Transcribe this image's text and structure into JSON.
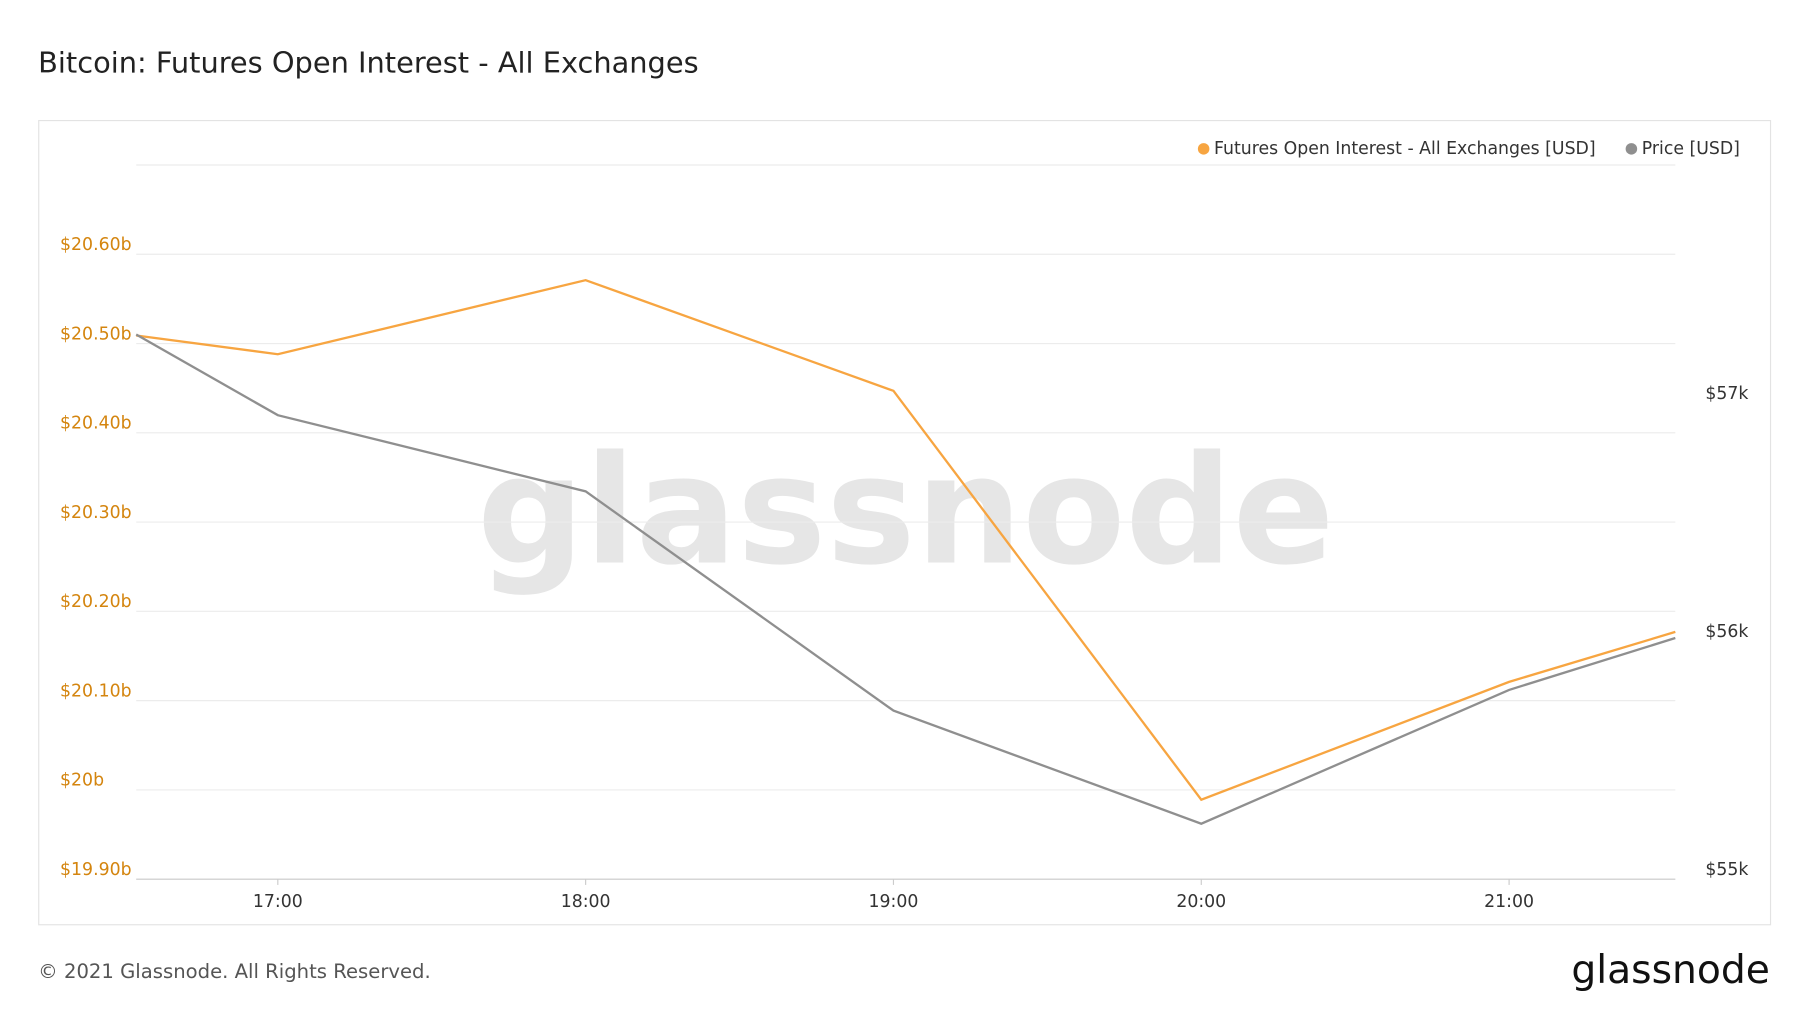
{
  "chart_data": {
    "type": "line",
    "title": "Bitcoin: Futures Open Interest - All Exchanges",
    "x": [
      16.54,
      17,
      18,
      19,
      20,
      21,
      21.54
    ],
    "xlim": [
      16.54,
      21.54
    ],
    "xticks": [
      {
        "value": 17,
        "label": "17:00"
      },
      {
        "value": 18,
        "label": "18:00"
      },
      {
        "value": 19,
        "label": "19:00"
      },
      {
        "value": 20,
        "label": "20:00"
      },
      {
        "value": 21,
        "label": "21:00"
      }
    ],
    "ylim": [
      19.9,
      20.7
    ],
    "yticks": [
      {
        "value": 19.9,
        "label": "$19.90b"
      },
      {
        "value": 20.0,
        "label": "$20b"
      },
      {
        "value": 20.1,
        "label": "$20.10b"
      },
      {
        "value": 20.2,
        "label": "$20.20b"
      },
      {
        "value": 20.3,
        "label": "$20.30b"
      },
      {
        "value": 20.4,
        "label": "$20.40b"
      },
      {
        "value": 20.5,
        "label": "$20.50b"
      },
      {
        "value": 20.6,
        "label": "$20.60b"
      }
    ],
    "y2lim": [
      55000,
      58000
    ],
    "y2ticks": [
      {
        "value": 55000,
        "label": "$55k"
      },
      {
        "value": 56000,
        "label": "$56k"
      },
      {
        "value": 57000,
        "label": "$57k"
      }
    ],
    "grid": true,
    "legend": "top-right",
    "series": [
      {
        "name": "Futures Open Interest - All Exchanges [USD]",
        "color": "#f7a541",
        "values": [
          20.509,
          20.488,
          20.571,
          20.447,
          19.989,
          20.121,
          20.177
        ]
      },
      {
        "name": "Price [USD]",
        "color": "#8f8f8f",
        "axis": "y2",
        "values": [
          57288,
          56949,
          56629,
          55708,
          55233,
          55795,
          56013
        ]
      }
    ]
  },
  "watermark": "glassnode",
  "footer": "© 2021 Glassnode. All Rights Reserved.",
  "logo": "glassnode"
}
